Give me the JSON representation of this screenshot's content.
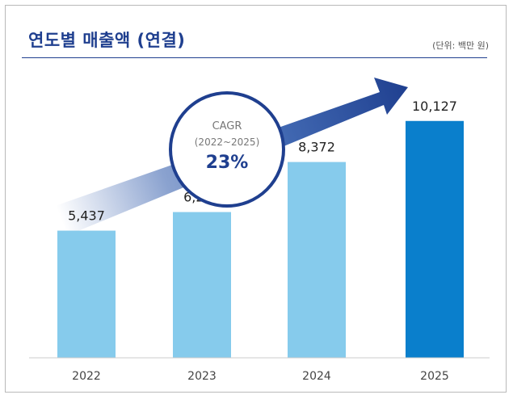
{
  "header": {
    "title": "연도별 매출액 (연결)",
    "unit": "(단위: 백만 원)"
  },
  "cagr": {
    "label": "CAGR",
    "period": "(2022~2025)",
    "value": "23%"
  },
  "colors": {
    "title": "#1f3f8f",
    "bar_light": "#86cbec",
    "bar_highlight": "#0a7fcc",
    "arrow": "#2b56a8",
    "circle_border": "#1f3f8f"
  },
  "chart_data": {
    "type": "bar",
    "categories": [
      "2022",
      "2023",
      "2024",
      "2025"
    ],
    "values": [
      5437,
      6232,
      8372,
      10127
    ],
    "value_labels": [
      "5,437",
      "6,232",
      "8,372",
      "10,127"
    ],
    "highlight_index": 3,
    "ylim": [
      0,
      11500
    ],
    "grid": false
  }
}
